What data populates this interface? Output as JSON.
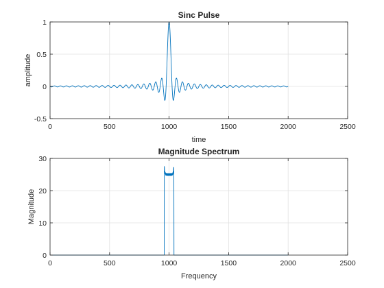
{
  "colors": {
    "line": "#0072BD",
    "grid": "#e1e1e1",
    "axes": "#262626",
    "background": "#ffffff"
  },
  "chart_data": [
    {
      "type": "line",
      "title": "Sinc Pulse",
      "xlabel": "time",
      "ylabel": "amplitude",
      "xlim": [
        0,
        2500
      ],
      "ylim": [
        -0.5,
        1
      ],
      "xticks": [
        0,
        500,
        1000,
        1500,
        2000,
        2500
      ],
      "yticks": [
        -0.5,
        0,
        0.5,
        1
      ],
      "xtick_labels": [
        "0",
        "500",
        "1000",
        "1500",
        "2000",
        "2500"
      ],
      "ytick_labels": [
        "-0.5",
        "0",
        "0.5",
        "1"
      ],
      "grid": true,
      "series": [
        {
          "generator": "sinc",
          "x_start": 0,
          "x_end": 2000,
          "center": 1000,
          "zero_spacing": 25,
          "peak": 1
        }
      ]
    },
    {
      "type": "line",
      "title": "Magnitude Spectrum",
      "xlabel": "Frequency",
      "ylabel": "Magnitude",
      "xlim": [
        0,
        2500
      ],
      "ylim": [
        0,
        30
      ],
      "xticks": [
        0,
        500,
        1000,
        1500,
        2000,
        2500
      ],
      "yticks": [
        0,
        10,
        20,
        30
      ],
      "xtick_labels": [
        "0",
        "500",
        "1000",
        "1500",
        "2000",
        "2500"
      ],
      "ytick_labels": [
        "0",
        "10",
        "20",
        "30"
      ],
      "grid": true,
      "series": [
        {
          "generator": "rect",
          "x_start": 0,
          "x_end": 2000,
          "band_start": 960,
          "band_end": 1040,
          "level": 25,
          "overshoot_peak": 27.5
        }
      ]
    }
  ]
}
